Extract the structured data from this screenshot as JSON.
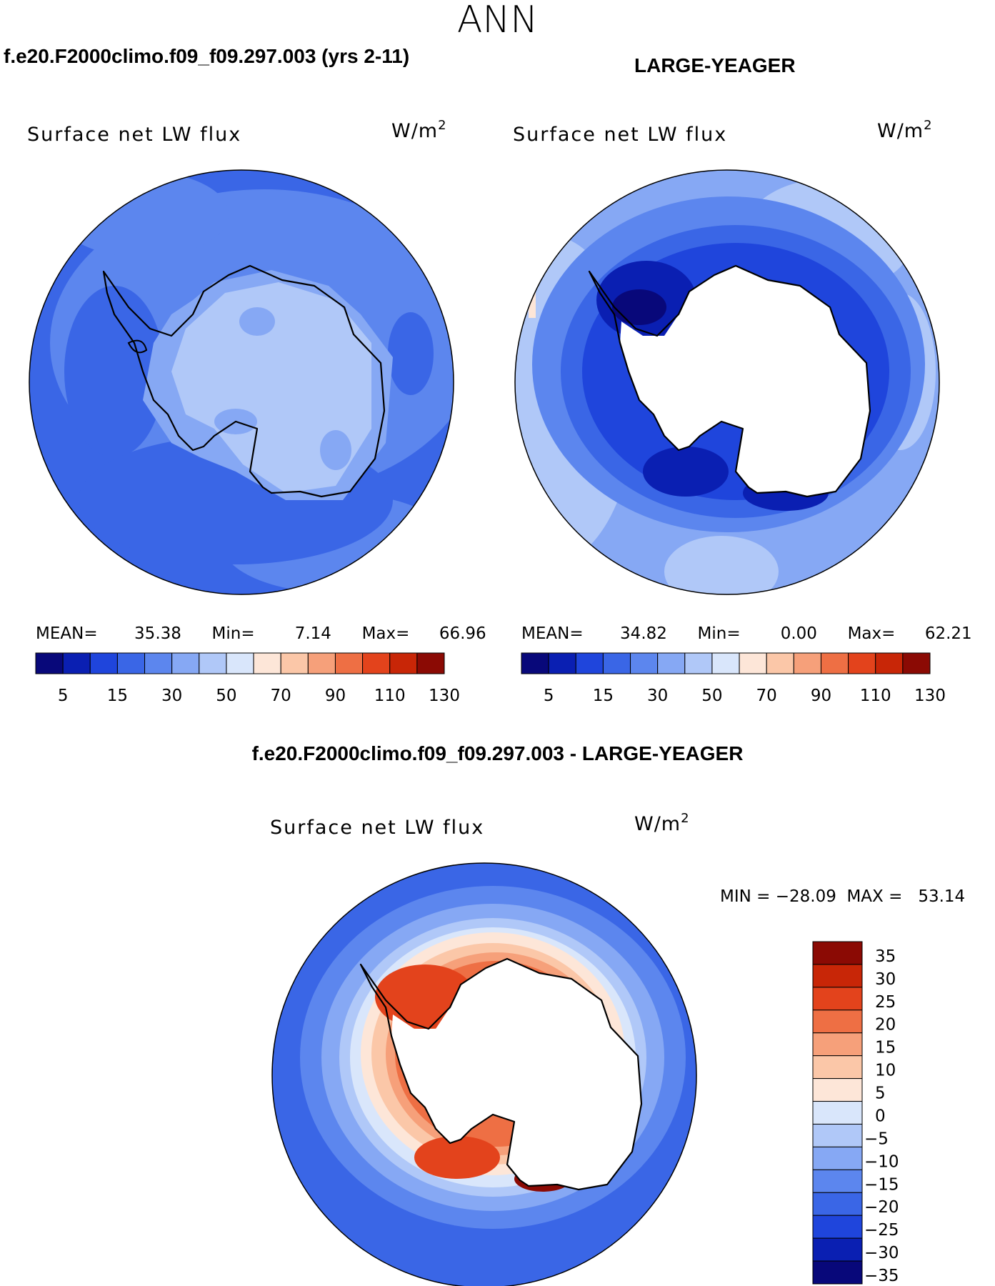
{
  "figure": {
    "season": "ANN"
  },
  "panels": [
    {
      "header": "f.e20.F2000climo.f09_f09.297.003 (yrs 2-11)",
      "variable": "Surface net LW flux",
      "units_base": "W/m",
      "units_exp": "2",
      "stats": {
        "mean_label": "MEAN=",
        "mean": "35.38",
        "min_label": "Min=",
        "min": "7.14",
        "max_label": "Max=",
        "max": "66.96"
      }
    },
    {
      "header": "LARGE-YEAGER",
      "variable": "Surface net LW flux",
      "units_base": "W/m",
      "units_exp": "2",
      "stats": {
        "mean_label": "MEAN=",
        "mean": "34.82",
        "min_label": "Min=",
        "min": "0.00",
        "max_label": "Max=",
        "max": "62.21"
      }
    }
  ],
  "difference": {
    "header": "f.e20.F2000climo.f09_f09.297.003 - LARGE-YEAGER",
    "variable": "Surface net LW flux",
    "units_base": "W/m",
    "units_exp": "2",
    "minmax": "MIN = −28.09  MAX =   53.14"
  },
  "top_colorbar": {
    "colors": [
      "#08087a",
      "#0a1fb2",
      "#1f45dc",
      "#3a66e6",
      "#5c86ee",
      "#86a8f4",
      "#b0c8f8",
      "#d9e6fb",
      "#fde6d8",
      "#fbc7a8",
      "#f6a07a",
      "#ee6f44",
      "#e3431c",
      "#c82607",
      "#8b0a04"
    ],
    "labels": [
      "5",
      "15",
      "30",
      "50",
      "70",
      "90",
      "110",
      "130"
    ]
  },
  "diff_colorbar": {
    "colors_top_to_bottom": [
      "#8b0a04",
      "#c82607",
      "#e3431c",
      "#ee6f44",
      "#f6a07a",
      "#fbc7a8",
      "#fde6d8",
      "#d9e6fb",
      "#b0c8f8",
      "#86a8f4",
      "#5c86ee",
      "#3a66e6",
      "#1f45dc",
      "#0a1fb2",
      "#08087a"
    ],
    "labels": [
      "35",
      "30",
      "25",
      "20",
      "15",
      "10",
      "5",
      "0",
      "−5",
      "−10",
      "−15",
      "−20",
      "−25",
      "−30",
      "−35"
    ]
  }
}
